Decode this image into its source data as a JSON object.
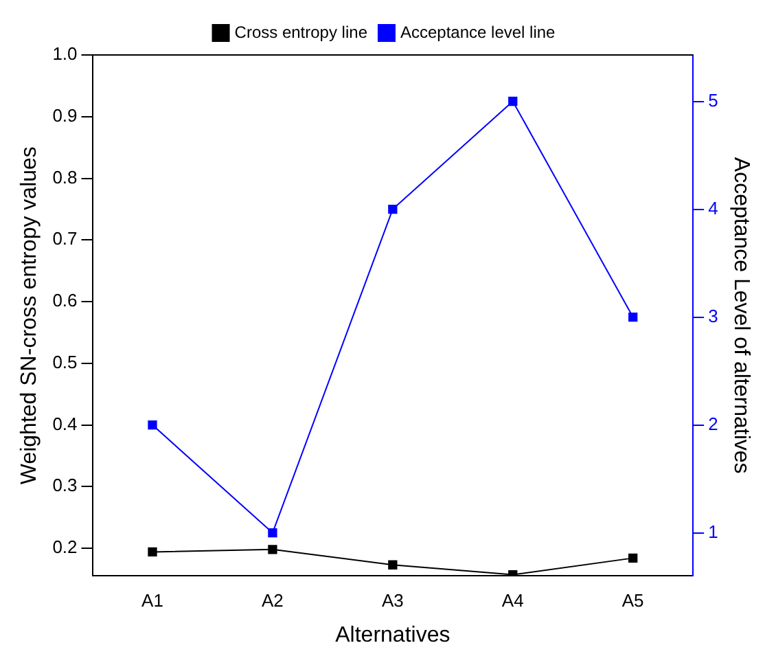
{
  "chart_data": {
    "type": "line",
    "xlabel": "Alternatives",
    "ylabel": "Weighted SN-cross entropy values",
    "y2label": "Acceptance Level of alternatives",
    "categories": [
      "A1",
      "A2",
      "A3",
      "A4",
      "A5"
    ],
    "series": [
      {
        "name": "Cross entropy line",
        "color": "#000000",
        "values": [
          0.194,
          0.198,
          0.173,
          0.157,
          0.184
        ]
      },
      {
        "name": "Acceptance level line",
        "color": "#0000ff",
        "axis": "y2",
        "values": [
          2,
          1,
          4,
          5,
          3
        ]
      }
    ],
    "ylim": [
      0.155,
      1.0
    ],
    "yticks": [
      0.2,
      0.3,
      0.4,
      0.5,
      0.6,
      0.7,
      0.8,
      0.9,
      {
        "value": 1.0,
        "label": "1.0"
      }
    ],
    "y2lim": [
      0.6,
      5.43
    ],
    "y2ticks": [
      1,
      2,
      3,
      4,
      5
    ],
    "marker": "square",
    "legend": "top",
    "grid": false
  }
}
